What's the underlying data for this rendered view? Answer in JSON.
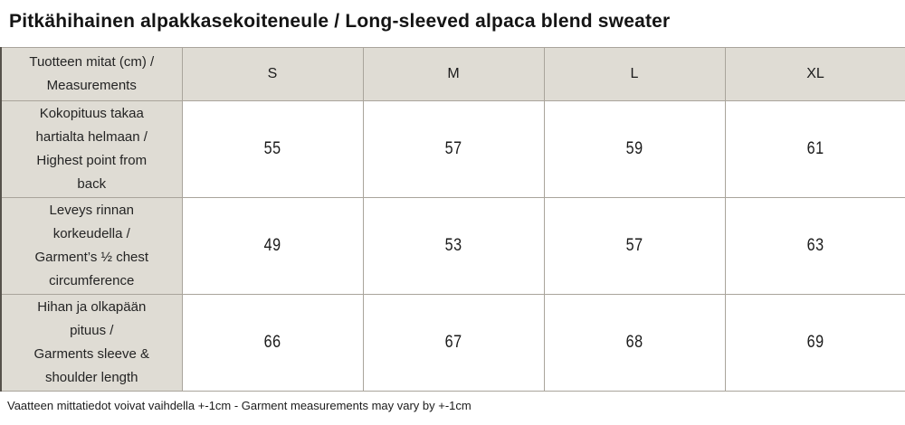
{
  "page": {
    "title": "Pitkähihainen alpakkasekoiteneule / Long-sleeved alpaca blend sweater",
    "footnote": "Vaatteen mittatiedot voivat vaihdella +-1cm - Garment measurements may vary by +-1cm"
  },
  "size_table": {
    "header": {
      "label_fi": "Tuotteen mitat (cm) /",
      "label_en": "Measurements",
      "sizes": [
        "S",
        "M",
        "L",
        "XL"
      ]
    },
    "rows": [
      {
        "label_fi": "Kokopituus takaa hartialta helmaan /",
        "label_en": "Highest point from back",
        "values": [
          "55",
          "57",
          "59",
          "61"
        ]
      },
      {
        "label_fi": "Leveys rinnan korkeudella /",
        "label_en": "Garment’s ½ chest circumference",
        "values": [
          "49",
          "53",
          "57",
          "63"
        ]
      },
      {
        "label_fi": "Hihan ja olkapään pituus /",
        "label_en": "Garments sleeve & shoulder length",
        "values": [
          "66",
          "67",
          "68",
          "69"
        ]
      }
    ],
    "colors": {
      "header_bg": "#dfdcd4",
      "cell_bg": "#ffffff",
      "border": "#a9a49b",
      "text": "#1c1c1c"
    }
  },
  "chart_data": {
    "type": "table",
    "title": "Pitkähihainen alpakkasekoiteneule / Long-sleeved alpaca blend sweater",
    "columns": [
      "Tuotteen mitat (cm) / Measurements",
      "S",
      "M",
      "L",
      "XL"
    ],
    "rows": [
      [
        "Kokopituus takaa hartialta helmaan / Highest point from back",
        55,
        57,
        59,
        61
      ],
      [
        "Leveys rinnan korkeudella / Garment’s ½ chest circumference",
        49,
        53,
        57,
        63
      ],
      [
        "Hihan ja olkapään pituus / Garments sleeve & shoulder length",
        66,
        67,
        68,
        69
      ]
    ],
    "footnote": "Vaatteen mittatiedot voivat vaihdella +-1cm - Garment measurements may vary by +-1cm"
  }
}
